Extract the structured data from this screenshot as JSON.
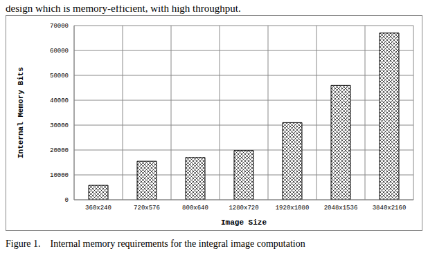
{
  "text_above": "design which is memory-efficient, with high throughput.",
  "caption": "Figure 1.    Internal memory requirements for the integral image computation",
  "chart_data": {
    "type": "bar",
    "x_label": "Image Size",
    "y_label": "Internal Memory Bits",
    "categories": [
      "360x240",
      "720x576",
      "800x640",
      "1280x720",
      "1920x1080",
      "2048x1536",
      "3840x2160"
    ],
    "values": [
      5800,
      15500,
      17000,
      19800,
      31000,
      46000,
      67000
    ],
    "color": "#000000",
    "ylim": [
      0,
      70000
    ],
    "yticks": [
      0,
      10000,
      20000,
      30000,
      40000,
      50000,
      60000,
      70000
    ],
    "grid": true
  }
}
